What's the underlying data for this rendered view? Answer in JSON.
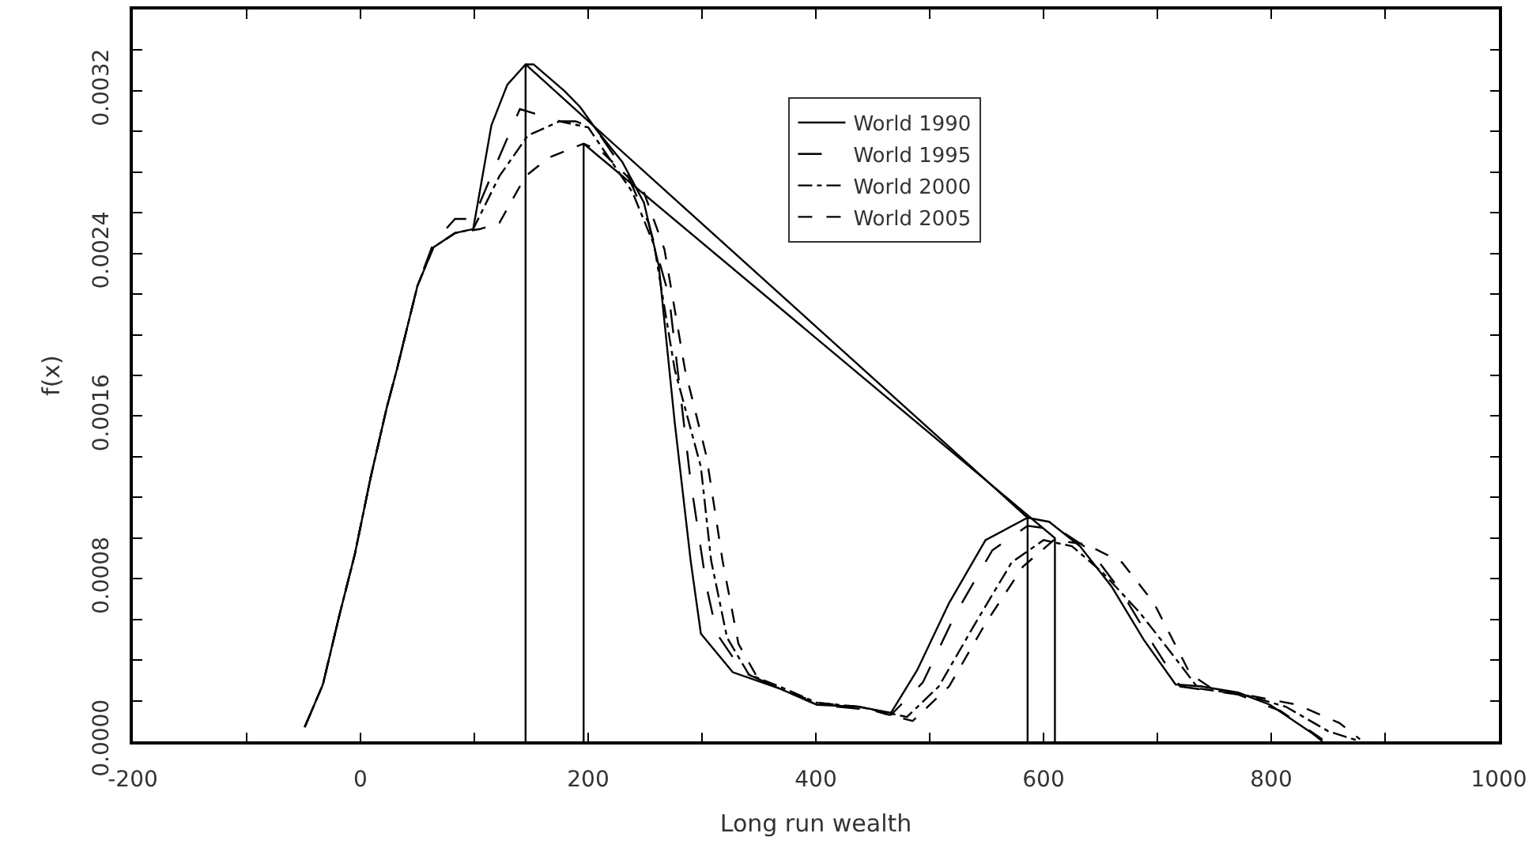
{
  "chart_data": {
    "type": "line",
    "xlabel": "Long run wealth",
    "ylabel": "f(x)",
    "xlim": [
      -200,
      1000
    ],
    "xticks": [
      -200,
      {
        "value": -100,
        "label": null
      },
      0,
      {
        "value": 100,
        "label": null
      },
      200,
      {
        "value": 300,
        "label": null
      },
      400,
      {
        "value": 500,
        "label": null
      },
      600,
      {
        "value": 700,
        "label": null
      },
      800,
      {
        "value": 900,
        "label": null
      },
      1000
    ],
    "ylim": [
      0,
      0.0036
    ],
    "yticks": [
      {
        "value": 0,
        "label": "0.0000"
      },
      {
        "value": 0.0002,
        "label": null
      },
      {
        "value": 0.0004,
        "label": null
      },
      {
        "value": 0.0006,
        "label": null
      },
      {
        "value": 0.0008,
        "label": "0.0008"
      },
      {
        "value": 0.001,
        "label": null
      },
      {
        "value": 0.0012,
        "label": null
      },
      {
        "value": 0.0014,
        "label": null
      },
      {
        "value": 0.0016,
        "label": "0.0016"
      },
      {
        "value": 0.0018,
        "label": null
      },
      {
        "value": 0.002,
        "label": null
      },
      {
        "value": 0.0022,
        "label": null
      },
      {
        "value": 0.0024,
        "label": "0.0024"
      },
      {
        "value": 0.0026,
        "label": null
      },
      {
        "value": 0.0028,
        "label": null
      },
      {
        "value": 0.003,
        "label": null
      },
      {
        "value": 0.0032,
        "label": "0.0032"
      },
      {
        "value": 0.0034,
        "label": null
      },
      {
        "value": 0.0036,
        "label": null
      }
    ],
    "legend": "top right",
    "series": [
      {
        "name": "World 1990",
        "color": "#000000",
        "line_style": "solid",
        "x": [
          -49,
          -33,
          -19,
          -5,
          9,
          23,
          32,
          50,
          64,
          83,
          99,
          115,
          129,
          145,
          152,
          179,
          193,
          207,
          230,
          249,
          262,
          276,
          290,
          299,
          327,
          368,
          401,
          438,
          466,
          489,
          517,
          549,
          586,
          605,
          632,
          660,
          688,
          716,
          739,
          771,
          799,
          836,
          845
        ],
        "values": [
          7e-05,
          0.00028,
          0.00061,
          0.00092,
          0.0013,
          0.00164,
          0.00183,
          0.00224,
          0.00243,
          0.0025,
          0.00252,
          0.00303,
          0.00323,
          0.00333,
          0.00333,
          0.0032,
          0.00312,
          0.00301,
          0.00285,
          0.00265,
          0.00234,
          0.00157,
          0.00089,
          0.00053,
          0.00034,
          0.00026,
          0.00018,
          0.00017,
          0.00014,
          0.00035,
          0.00068,
          0.00099,
          0.0011,
          0.00108,
          0.00096,
          0.00076,
          0.0005,
          0.00028,
          0.00027,
          0.00024,
          0.00018,
          4e-05,
          0
        ]
      },
      {
        "name": "World 1995",
        "color": "#000000",
        "line_style": "longdash",
        "x": [
          -49,
          -33,
          -19,
          -5,
          9,
          23,
          32,
          50,
          64,
          83,
          99,
          120,
          140,
          175,
          189,
          207,
          235,
          253,
          271,
          290,
          304,
          313,
          336,
          368,
          401,
          438,
          466,
          494,
          523,
          555,
          586,
          614,
          641,
          669,
          697,
          720,
          771,
          808,
          845
        ],
        "values": [
          7e-05,
          0.00028,
          0.00061,
          0.00092,
          0.0013,
          0.00164,
          0.00183,
          0.00224,
          0.00245,
          0.00257,
          0.00257,
          0.00285,
          0.00311,
          0.00305,
          0.00305,
          0.00301,
          0.00278,
          0.00255,
          0.00219,
          0.00128,
          0.00076,
          0.00053,
          0.00034,
          0.00026,
          0.00018,
          0.00016,
          0.00013,
          0.00029,
          0.00063,
          0.00094,
          0.00106,
          0.00104,
          0.00094,
          0.00073,
          0.00047,
          0.00027,
          0.00023,
          0.00015,
          1e-05
        ]
      },
      {
        "name": "World 2000",
        "color": "#000000",
        "line_style": "dashdot",
        "x": [
          -49,
          -33,
          -19,
          -5,
          9,
          23,
          32,
          50,
          64,
          83,
          99,
          122,
          147,
          175,
          200,
          239,
          258,
          276,
          299,
          308,
          322,
          341,
          368,
          401,
          438,
          480,
          508,
          540,
          572,
          600,
          625,
          652,
          685,
          717,
          736,
          776,
          813,
          850,
          878
        ],
        "values": [
          7e-05,
          0.00028,
          0.00061,
          0.00092,
          0.0013,
          0.00164,
          0.00183,
          0.00224,
          0.00243,
          0.0025,
          0.00252,
          0.00278,
          0.00298,
          0.00305,
          0.00302,
          0.0027,
          0.00244,
          0.00183,
          0.00135,
          0.00089,
          0.00051,
          0.00033,
          0.00027,
          0.00019,
          0.00017,
          0.00012,
          0.00027,
          0.00058,
          0.00088,
          0.00099,
          0.00096,
          0.00083,
          0.00063,
          0.0004,
          0.00026,
          0.00023,
          0.00017,
          5e-05,
          0
        ]
      },
      {
        "name": "World 2005",
        "color": "#000000",
        "line_style": "dashed",
        "x": [
          -49,
          -33,
          -19,
          -5,
          9,
          23,
          32,
          50,
          64,
          83,
          105,
          122,
          145,
          165,
          196,
          212,
          249,
          267,
          285,
          304,
          318,
          332,
          350,
          368,
          401,
          438,
          485,
          517,
          549,
          582,
          609,
          637,
          669,
          697,
          729,
          748,
          786,
          823,
          860,
          878
        ],
        "values": [
          7e-05,
          0.00028,
          0.00061,
          0.00092,
          0.0013,
          0.00164,
          0.00183,
          0.00224,
          0.00243,
          0.0025,
          0.00252,
          0.00255,
          0.00278,
          0.00287,
          0.00294,
          0.0029,
          0.0027,
          0.00242,
          0.00183,
          0.0014,
          0.00089,
          0.00048,
          0.0003,
          0.00026,
          0.00019,
          0.00017,
          0.0001,
          0.00027,
          0.00058,
          0.00086,
          0.00099,
          0.00097,
          0.00088,
          0.00068,
          0.00033,
          0.00026,
          0.00022,
          0.00018,
          9e-05,
          1e-05
        ]
      },
      {
        "color": "#000000",
        "line_style": "solid",
        "x": [
          145,
          145,
          586,
          586
        ],
        "values": [
          0,
          0.00333,
          0.0011,
          0
        ]
      },
      {
        "color": "#000000",
        "line_style": "solid",
        "x": [
          196,
          196,
          610,
          610
        ],
        "values": [
          0,
          0.00294,
          0.001,
          0
        ]
      }
    ]
  }
}
